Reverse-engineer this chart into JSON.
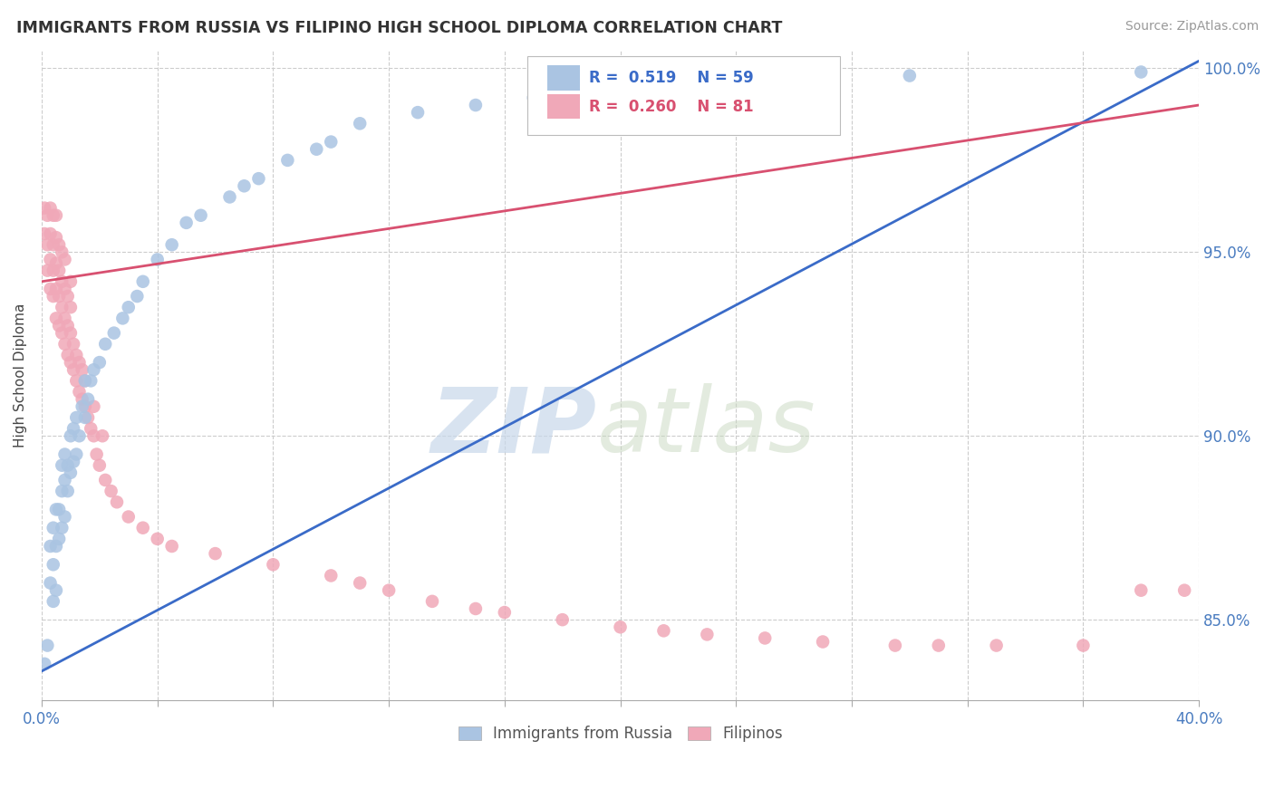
{
  "title": "IMMIGRANTS FROM RUSSIA VS FILIPINO HIGH SCHOOL DIPLOMA CORRELATION CHART",
  "source": "Source: ZipAtlas.com",
  "ylabel": "High School Diploma",
  "xmin": 0.0,
  "xmax": 0.4,
  "ymin": 0.828,
  "ymax": 1.005,
  "yticks": [
    0.85,
    0.9,
    0.95,
    1.0
  ],
  "ytick_labels": [
    "85.0%",
    "90.0%",
    "95.0%",
    "100.0%"
  ],
  "xticks": [
    0.0,
    0.04,
    0.08,
    0.12,
    0.16,
    0.2,
    0.24,
    0.28,
    0.32,
    0.36,
    0.4
  ],
  "blue_R": 0.519,
  "blue_N": 59,
  "pink_R": 0.26,
  "pink_N": 81,
  "blue_color": "#aac4e2",
  "pink_color": "#f0a8b8",
  "blue_line_color": "#3a6bc8",
  "pink_line_color": "#d85070",
  "legend_label_blue": "Immigrants from Russia",
  "legend_label_pink": "Filipinos",
  "blue_trend_x0": 0.0,
  "blue_trend_y0": 0.836,
  "blue_trend_x1": 0.4,
  "blue_trend_y1": 1.002,
  "pink_trend_x0": 0.0,
  "pink_trend_y0": 0.942,
  "pink_trend_x1": 0.4,
  "pink_trend_y1": 0.99,
  "blue_scatter_x": [
    0.001,
    0.002,
    0.003,
    0.003,
    0.004,
    0.004,
    0.004,
    0.005,
    0.005,
    0.005,
    0.006,
    0.006,
    0.007,
    0.007,
    0.007,
    0.008,
    0.008,
    0.008,
    0.009,
    0.009,
    0.01,
    0.01,
    0.011,
    0.011,
    0.012,
    0.012,
    0.013,
    0.014,
    0.015,
    0.015,
    0.016,
    0.017,
    0.018,
    0.02,
    0.022,
    0.025,
    0.028,
    0.03,
    0.033,
    0.035,
    0.04,
    0.045,
    0.05,
    0.055,
    0.065,
    0.07,
    0.075,
    0.085,
    0.095,
    0.1,
    0.11,
    0.13,
    0.15,
    0.17,
    0.2,
    0.22,
    0.25,
    0.3,
    0.38
  ],
  "blue_scatter_y": [
    0.838,
    0.843,
    0.86,
    0.87,
    0.855,
    0.865,
    0.875,
    0.858,
    0.87,
    0.88,
    0.872,
    0.88,
    0.875,
    0.885,
    0.892,
    0.878,
    0.888,
    0.895,
    0.885,
    0.892,
    0.89,
    0.9,
    0.893,
    0.902,
    0.895,
    0.905,
    0.9,
    0.908,
    0.905,
    0.915,
    0.91,
    0.915,
    0.918,
    0.92,
    0.925,
    0.928,
    0.932,
    0.935,
    0.938,
    0.942,
    0.948,
    0.952,
    0.958,
    0.96,
    0.965,
    0.968,
    0.97,
    0.975,
    0.978,
    0.98,
    0.985,
    0.988,
    0.99,
    0.992,
    0.994,
    0.995,
    0.996,
    0.998,
    0.999
  ],
  "pink_scatter_x": [
    0.001,
    0.001,
    0.002,
    0.002,
    0.002,
    0.003,
    0.003,
    0.003,
    0.003,
    0.004,
    0.004,
    0.004,
    0.004,
    0.005,
    0.005,
    0.005,
    0.005,
    0.005,
    0.006,
    0.006,
    0.006,
    0.006,
    0.007,
    0.007,
    0.007,
    0.007,
    0.008,
    0.008,
    0.008,
    0.008,
    0.009,
    0.009,
    0.009,
    0.01,
    0.01,
    0.01,
    0.01,
    0.011,
    0.011,
    0.012,
    0.012,
    0.013,
    0.013,
    0.014,
    0.014,
    0.015,
    0.015,
    0.016,
    0.017,
    0.018,
    0.018,
    0.019,
    0.02,
    0.021,
    0.022,
    0.024,
    0.026,
    0.03,
    0.035,
    0.04,
    0.045,
    0.06,
    0.08,
    0.1,
    0.11,
    0.12,
    0.135,
    0.15,
    0.16,
    0.18,
    0.2,
    0.215,
    0.23,
    0.25,
    0.27,
    0.295,
    0.31,
    0.33,
    0.36,
    0.38,
    0.395
  ],
  "pink_scatter_y": [
    0.955,
    0.962,
    0.945,
    0.952,
    0.96,
    0.94,
    0.948,
    0.955,
    0.962,
    0.938,
    0.945,
    0.952,
    0.96,
    0.932,
    0.94,
    0.947,
    0.954,
    0.96,
    0.93,
    0.938,
    0.945,
    0.952,
    0.928,
    0.935,
    0.942,
    0.95,
    0.925,
    0.932,
    0.94,
    0.948,
    0.922,
    0.93,
    0.938,
    0.92,
    0.928,
    0.935,
    0.942,
    0.918,
    0.925,
    0.915,
    0.922,
    0.912,
    0.92,
    0.91,
    0.918,
    0.908,
    0.915,
    0.905,
    0.902,
    0.9,
    0.908,
    0.895,
    0.892,
    0.9,
    0.888,
    0.885,
    0.882,
    0.878,
    0.875,
    0.872,
    0.87,
    0.868,
    0.865,
    0.862,
    0.86,
    0.858,
    0.855,
    0.853,
    0.852,
    0.85,
    0.848,
    0.847,
    0.846,
    0.845,
    0.844,
    0.843,
    0.843,
    0.843,
    0.843,
    0.858,
    0.858
  ]
}
